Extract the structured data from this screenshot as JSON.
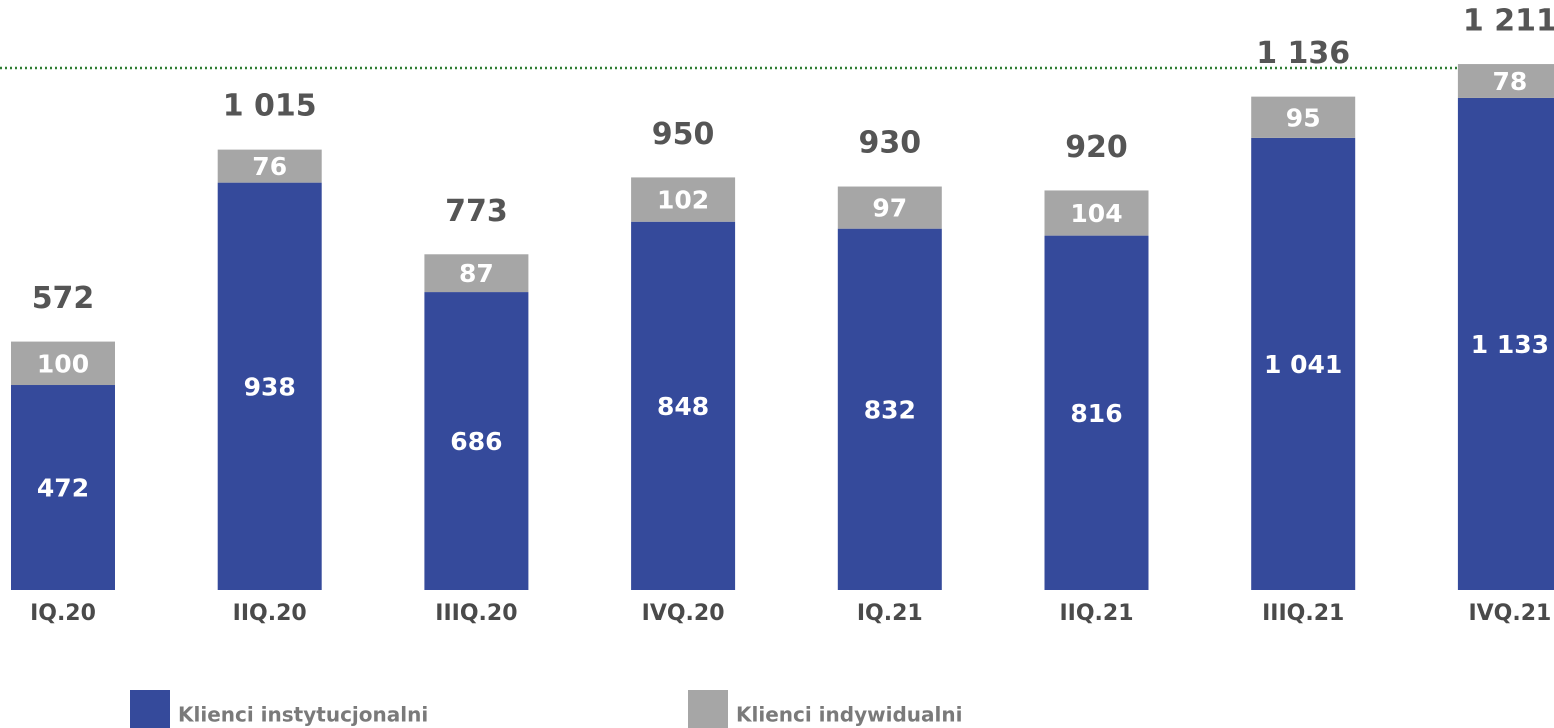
{
  "chart_data": {
    "type": "stacked_bar",
    "categories": [
      "IQ.20",
      "IIQ.20",
      "IIIQ.20",
      "IVQ.20",
      "IQ.21",
      "IIQ.21",
      "IIIQ.21",
      "IVQ.21"
    ],
    "series": [
      {
        "name": "Klienci instytucjonalni",
        "color": "#354a9b",
        "values": [
          472,
          938,
          686,
          848,
          832,
          816,
          1041,
          1133
        ],
        "value_labels": [
          "472",
          "938",
          "686",
          "848",
          "832",
          "816",
          "1 041",
          "1 133"
        ]
      },
      {
        "name": "Klienci indywidualni",
        "color": "#a6a6a6",
        "values": [
          100,
          76,
          87,
          102,
          97,
          104,
          95,
          78
        ],
        "value_labels": [
          "100",
          "76",
          "87",
          "102",
          "97",
          "104",
          "95",
          "78"
        ]
      }
    ],
    "totals": [
      572,
      1015,
      773,
      950,
      930,
      920,
      1136,
      1211
    ],
    "total_labels": [
      "572",
      "1 015",
      "773",
      "950",
      "930",
      "920",
      "1 136",
      "1 211"
    ]
  }
}
